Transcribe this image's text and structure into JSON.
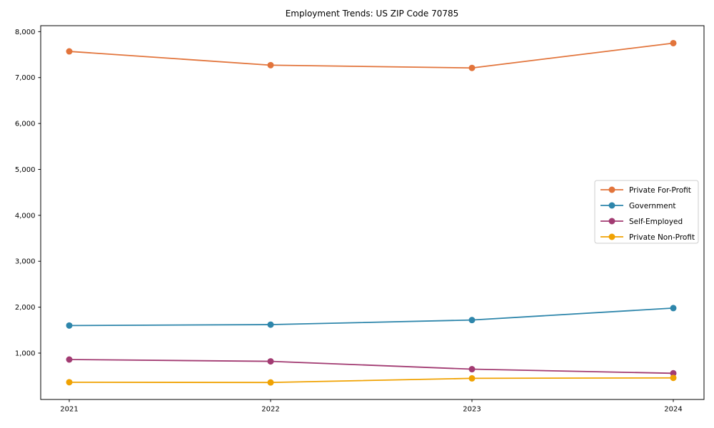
{
  "figure": {
    "background": "#ffffff",
    "frame_color": "#000000"
  },
  "chart_data": {
    "type": "line",
    "title": "Employment Trends: US ZIP Code 70785",
    "xlabel": "",
    "ylabel": "",
    "categories": [
      "2021",
      "2022",
      "2023",
      "2024"
    ],
    "series": [
      {
        "name": "Private For-Profit",
        "color": "#e2743b",
        "values": [
          7570,
          7270,
          7210,
          7750
        ]
      },
      {
        "name": "Government",
        "color": "#2e86ab",
        "values": [
          1600,
          1620,
          1720,
          1980
        ]
      },
      {
        "name": "Self-Employed",
        "color": "#a23b72",
        "values": [
          860,
          820,
          650,
          560
        ]
      },
      {
        "name": "Private Non-Profit",
        "color": "#f0a202",
        "values": [
          365,
          360,
          450,
          460
        ]
      }
    ],
    "ylim": [
      -10,
      8130
    ],
    "yticks": [
      1000,
      2000,
      3000,
      4000,
      5000,
      6000,
      7000,
      8000
    ],
    "ytick_labels": [
      "1,000",
      "2,000",
      "3,000",
      "4,000",
      "5,000",
      "6,000",
      "7,000",
      "8,000"
    ],
    "grid": false,
    "legend_position": "center right",
    "marker": "circle"
  }
}
